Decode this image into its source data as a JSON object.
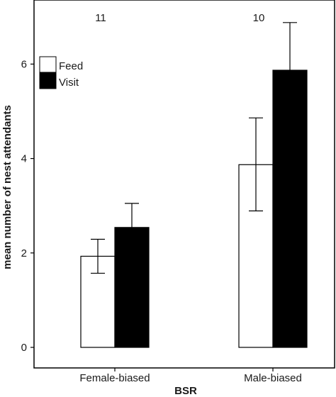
{
  "chart_data": {
    "type": "bar",
    "categories": [
      "Female-biased",
      "Male-biased"
    ],
    "series": [
      {
        "name": "Feed",
        "color": "#ffffff",
        "values": [
          1.93,
          3.87
        ],
        "error_low": [
          1.57,
          2.89
        ],
        "error_high": [
          2.29,
          4.86
        ]
      },
      {
        "name": "Visit",
        "color": "#000000",
        "values": [
          2.54,
          5.87
        ],
        "error_low": [
          2.03,
          4.86
        ],
        "error_high": [
          3.05,
          6.88
        ]
      }
    ],
    "group_labels": [
      "11",
      "10"
    ],
    "xlabel": "BSR",
    "ylabel": "mean number of nest attendants",
    "ylim": [
      0,
      7.4
    ],
    "yticks": [
      0,
      2,
      4,
      6
    ],
    "legend_position": "top-left",
    "grid": false
  }
}
